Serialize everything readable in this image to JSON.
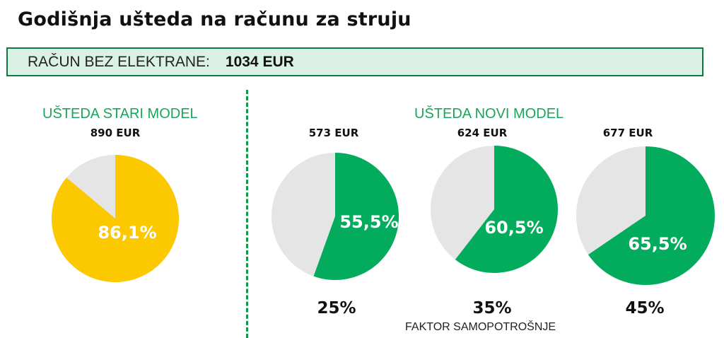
{
  "title": "Godišnja ušteda na računu za struju",
  "bill": {
    "label": "RAČUN BEZ ELEKTRANE:",
    "value": "1034  EUR"
  },
  "old_model": {
    "title": "UŠTEDA STARI MODEL"
  },
  "new_model": {
    "title": "UŠTEDA NOVI MODEL",
    "factor_label": "FAKTOR SAMOPOTROŠNJE"
  },
  "colors": {
    "yellow": "#fcc800",
    "green": "#03ac5c",
    "grey": "#e5e5e5",
    "accent": "#1aa55a"
  },
  "chart_data": [
    {
      "type": "pie",
      "title": "UŠTEDA STARI MODEL",
      "amount": "890 EUR",
      "value": 86.1,
      "label": "86,1%",
      "factor": ""
    },
    {
      "type": "pie",
      "title": "UŠTEDA NOVI MODEL",
      "amount": "573 EUR",
      "value": 55.5,
      "label": "55,5%",
      "factor": "25%"
    },
    {
      "type": "pie",
      "title": "UŠTEDA NOVI MODEL",
      "amount": "624 EUR",
      "value": 60.5,
      "label": "60,5%",
      "factor": "35%"
    },
    {
      "type": "pie",
      "title": "UŠTEDA NOVI MODEL",
      "amount": "677 EUR",
      "value": 65.5,
      "label": "65,5%",
      "factor": "45%"
    }
  ]
}
